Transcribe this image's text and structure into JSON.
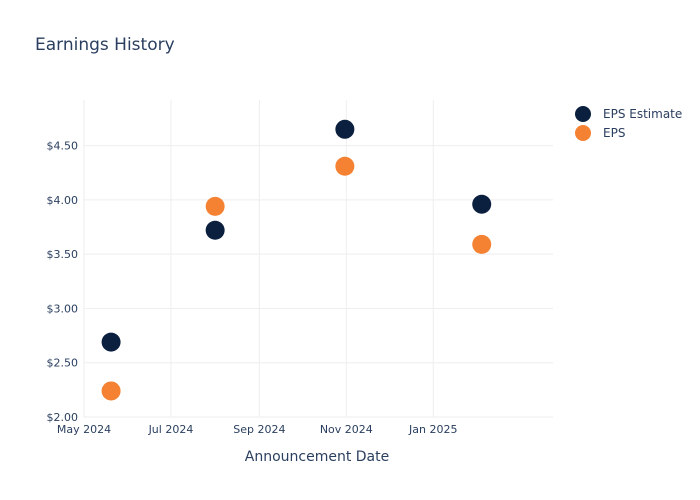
{
  "chart_data": {
    "type": "scatter",
    "title": "Earnings History",
    "xlabel": "Announcement Date",
    "ylabel": "",
    "x_ticks": [
      {
        "date": "2024-05-01",
        "label": "May 2024"
      },
      {
        "date": "2024-07-01",
        "label": "Jul 2024"
      },
      {
        "date": "2024-09-01",
        "label": "Sep 2024"
      },
      {
        "date": "2024-11-01",
        "label": "Nov 2024"
      },
      {
        "date": "2025-01-01",
        "label": "Jan 2025"
      }
    ],
    "xlim": [
      "2024-05-01",
      "2025-03-26"
    ],
    "y_ticks": [
      {
        "value": 2.0,
        "label": "$2.00"
      },
      {
        "value": 2.5,
        "label": "$2.50"
      },
      {
        "value": 3.0,
        "label": "$3.00"
      },
      {
        "value": 3.5,
        "label": "$3.50"
      },
      {
        "value": 4.0,
        "label": "$4.00"
      },
      {
        "value": 4.5,
        "label": "$4.50"
      }
    ],
    "ylim": [
      2.0,
      4.92
    ],
    "grid": true,
    "legend_position": "top-right",
    "series": [
      {
        "name": "EPS Estimate",
        "color": "#0b1f3f",
        "points": [
          {
            "x": "2024-05-20",
            "y": 2.69
          },
          {
            "x": "2024-08-01",
            "y": 3.72
          },
          {
            "x": "2024-10-31",
            "y": 4.65
          },
          {
            "x": "2025-02-04",
            "y": 3.96
          }
        ]
      },
      {
        "name": "EPS",
        "color": "#f58232",
        "points": [
          {
            "x": "2024-05-20",
            "y": 2.24
          },
          {
            "x": "2024-08-01",
            "y": 3.94
          },
          {
            "x": "2024-10-31",
            "y": 4.31
          },
          {
            "x": "2025-02-04",
            "y": 3.59
          }
        ]
      }
    ]
  }
}
